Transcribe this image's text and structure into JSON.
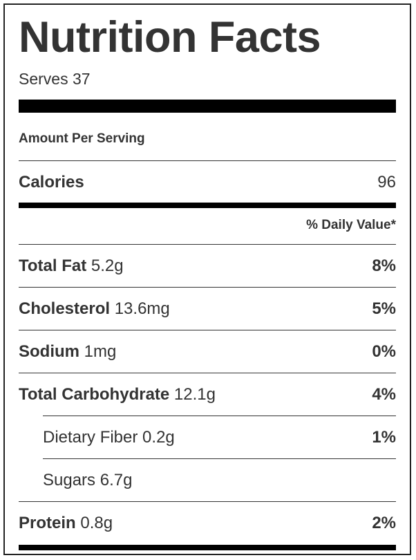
{
  "label": {
    "title": "Nutrition Facts",
    "serves": "Serves 37",
    "amount_per_serving": "Amount Per Serving",
    "calories": {
      "label": "Calories",
      "value": "96"
    },
    "daily_value_header": "% Daily Value*",
    "nutrients": [
      {
        "name": "Total Fat",
        "amount": "5.2g",
        "dv": "8%"
      },
      {
        "name": "Cholesterol",
        "amount": "13.6mg",
        "dv": "5%"
      },
      {
        "name": "Sodium",
        "amount": "1mg",
        "dv": "0%"
      },
      {
        "name": "Total Carbohydrate",
        "amount": "12.1g",
        "dv": "4%"
      },
      {
        "name": "Dietary Fiber",
        "amount": "0.2g",
        "dv": "1%"
      },
      {
        "name": "Sugars",
        "amount": "6.7g",
        "dv": ""
      },
      {
        "name": "Protein",
        "amount": "0.8g",
        "dv": "2%"
      }
    ]
  }
}
